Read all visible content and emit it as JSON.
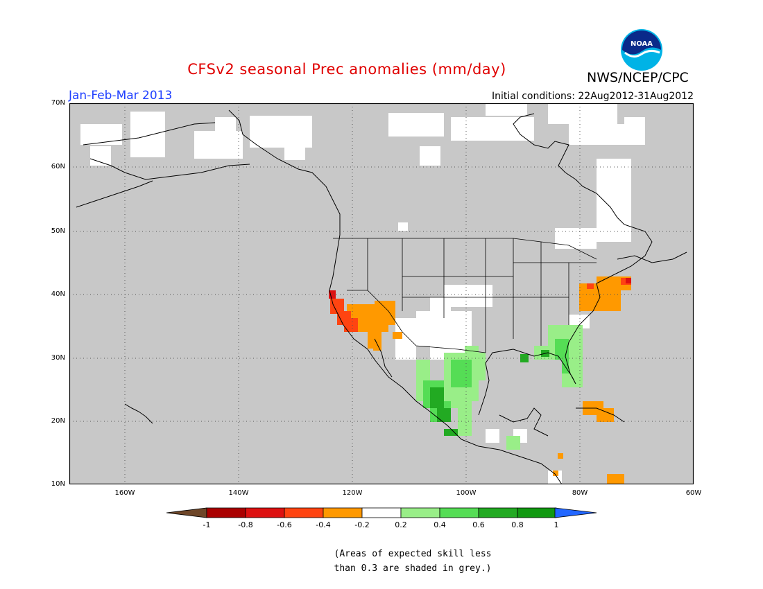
{
  "title": "CFSv2 seasonal Prec anomalies (mm/day)",
  "period": "Jan-Feb-Mar 2013",
  "initial_conditions": "Initial conditions: 22Aug2012-31Aug2012",
  "agency": "NWS/NCEP/CPC",
  "logo_text": "NOAA",
  "lat_labels": [
    "70N",
    "60N",
    "50N",
    "40N",
    "30N",
    "20N",
    "10N"
  ],
  "lon_labels": [
    "160W",
    "140W",
    "120W",
    "100W",
    "80W",
    "60W"
  ],
  "colorbar": {
    "ticks": [
      "-1",
      "-0.8",
      "-0.6",
      "-0.4",
      "-0.2",
      "0.2",
      "0.4",
      "0.6",
      "0.8",
      "1"
    ],
    "colors": {
      "below_min": "#6e4628",
      "bins": [
        "#aa0000",
        "#dd1111",
        "#ff4411",
        "#ff9900",
        "#ffffff",
        "#99ee88",
        "#55dd55",
        "#22aa22",
        "#119911"
      ],
      "above_max": "#2266ff"
    }
  },
  "map_colors": {
    "ocean_low_skill": "#c8c8c8",
    "no_anomaly": "#ffffff",
    "coastline": "#000000"
  },
  "note_lines": [
    "(Areas of expected skill less",
    "than 0.3 are shaded in grey.)"
  ]
}
